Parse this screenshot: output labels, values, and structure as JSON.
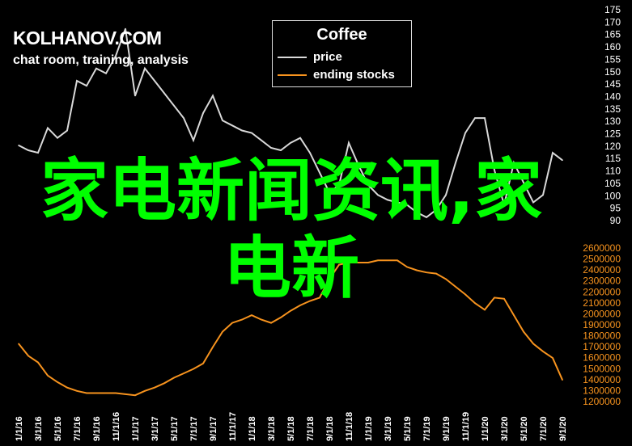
{
  "header": {
    "brand": "KOLHANOV.COM",
    "tagline": "chat room, training, analysis"
  },
  "overlay_text": "家电新闻资讯,家电新",
  "colors": {
    "price": "#d9d9d9",
    "stocks": "#f7931e",
    "overlay": "#00ff00",
    "background": "#000000"
  },
  "chart_data": {
    "type": "line",
    "title": "Coffee",
    "legend_placement": "top-center",
    "grid": false,
    "x_tick_labels": [
      "1/1/16",
      "3/1/16",
      "5/1/16",
      "7/1/16",
      "9/1/16",
      "11/1/16",
      "1/1/17",
      "3/1/17",
      "5/1/17",
      "7/1/17",
      "9/1/17",
      "11/1/17",
      "1/1/18",
      "3/1/18",
      "5/1/18",
      "7/1/18",
      "9/1/18",
      "11/1/18",
      "1/1/19",
      "3/1/19",
      "5/1/19",
      "7/1/19",
      "9/1/19",
      "11/1/19",
      "1/1/20",
      "3/1/20",
      "5/1/20",
      "7/1/20",
      "9/1/20"
    ],
    "x": [
      "2016-01",
      "2016-02",
      "2016-03",
      "2016-04",
      "2016-05",
      "2016-06",
      "2016-07",
      "2016-08",
      "2016-09",
      "2016-10",
      "2016-11",
      "2016-12",
      "2017-01",
      "2017-02",
      "2017-03",
      "2017-04",
      "2017-05",
      "2017-06",
      "2017-07",
      "2017-08",
      "2017-09",
      "2017-10",
      "2017-11",
      "2017-12",
      "2018-01",
      "2018-02",
      "2018-03",
      "2018-04",
      "2018-05",
      "2018-06",
      "2018-07",
      "2018-08",
      "2018-09",
      "2018-10",
      "2018-11",
      "2018-12",
      "2019-01",
      "2019-02",
      "2019-03",
      "2019-04",
      "2019-05",
      "2019-06",
      "2019-07",
      "2019-08",
      "2019-09",
      "2019-10",
      "2019-11",
      "2019-12",
      "2020-01",
      "2020-02",
      "2020-03",
      "2020-04",
      "2020-05",
      "2020-06",
      "2020-07",
      "2020-08",
      "2020-09"
    ],
    "series": [
      {
        "name": "price",
        "axis": "right-upper",
        "values": [
          120,
          118,
          117,
          127,
          123,
          126,
          146,
          144,
          151,
          149,
          156,
          167,
          140,
          151,
          146,
          141,
          136,
          131,
          122,
          133,
          140,
          130,
          128,
          126,
          125,
          122,
          119,
          118,
          121,
          123,
          117,
          109,
          101,
          104,
          121,
          112,
          104,
          100,
          98,
          97,
          96,
          93,
          91,
          94,
          100,
          113,
          125,
          131,
          131,
          110,
          96,
          113,
          105,
          97,
          100,
          117,
          114
        ]
      },
      {
        "name": "ending stocks",
        "axis": "right-lower",
        "values": [
          1720000,
          1610000,
          1550000,
          1430000,
          1370000,
          1320000,
          1290000,
          1270000,
          1270000,
          1270000,
          1270000,
          1260000,
          1250000,
          1290000,
          1320000,
          1360000,
          1410000,
          1450000,
          1490000,
          1540000,
          1690000,
          1830000,
          1910000,
          1940000,
          1980000,
          1940000,
          1910000,
          1960000,
          2020000,
          2070000,
          2110000,
          2140000,
          2310000,
          2440000,
          2460000,
          2460000,
          2460000,
          2480000,
          2480000,
          2480000,
          2420000,
          2390000,
          2370000,
          2360000,
          2310000,
          2240000,
          2170000,
          2090000,
          2030000,
          2140000,
          2130000,
          1980000,
          1830000,
          1720000,
          1650000,
          1590000,
          1390000
        ]
      }
    ],
    "price_axis": {
      "range": [
        90,
        175
      ],
      "ticks": [
        175,
        170,
        165,
        160,
        155,
        150,
        145,
        140,
        135,
        130,
        125,
        120,
        115,
        110,
        105,
        100,
        95,
        90
      ]
    },
    "stocks_axis": {
      "range": [
        1200000,
        2600000
      ],
      "ticks": [
        2600000,
        2500000,
        2400000,
        2300000,
        2200000,
        2100000,
        2000000,
        1900000,
        1800000,
        1700000,
        1600000,
        1500000,
        1400000,
        1300000,
        1200000
      ]
    }
  }
}
